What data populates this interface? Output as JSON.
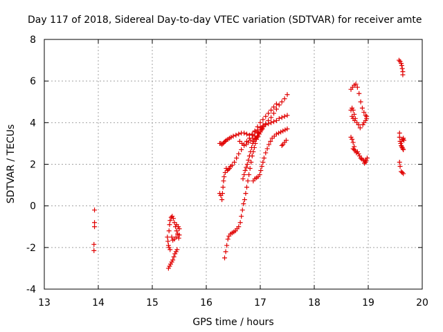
{
  "chart_data": {
    "type": "scatter",
    "title": "Day 117 of 2018, Sidereal Day-to-day VTEC variation (SDTVAR) for receiver amte",
    "xlabel": "GPS time / hours",
    "ylabel": "SDTVAR / TECUs",
    "xlim": [
      13,
      20
    ],
    "ylim": [
      -4,
      8
    ],
    "xticks": [
      "13",
      "14",
      "15",
      "16",
      "17",
      "18",
      "19",
      "20"
    ],
    "yticks": [
      "-4",
      "-2",
      "0",
      "2",
      "4",
      "6",
      "8"
    ],
    "grid": true,
    "marker": "+",
    "series_color": "#e00000",
    "series": [
      {
        "name": "SDTVAR",
        "points": [
          [
            13.93,
            -0.2
          ],
          [
            13.93,
            -0.8
          ],
          [
            13.93,
            -1.0
          ],
          [
            13.92,
            -1.85
          ],
          [
            13.92,
            -2.15
          ],
          [
            15.28,
            -1.5
          ],
          [
            15.29,
            -1.7
          ],
          [
            15.3,
            -1.9
          ],
          [
            15.31,
            -2.0
          ],
          [
            15.33,
            -2.1
          ],
          [
            15.31,
            -1.2
          ],
          [
            15.32,
            -0.9
          ],
          [
            15.33,
            -0.7
          ],
          [
            15.35,
            -0.55
          ],
          [
            15.37,
            -0.5
          ],
          [
            15.39,
            -0.6
          ],
          [
            15.41,
            -0.8
          ],
          [
            15.43,
            -1.0
          ],
          [
            15.45,
            -1.2
          ],
          [
            15.47,
            -1.35
          ],
          [
            15.44,
            -1.5
          ],
          [
            15.41,
            -1.6
          ],
          [
            15.38,
            -1.65
          ],
          [
            15.36,
            -1.5
          ],
          [
            15.45,
            -0.9
          ],
          [
            15.48,
            -1.0
          ],
          [
            15.5,
            -1.1
          ],
          [
            15.5,
            -1.4
          ],
          [
            15.49,
            -1.55
          ],
          [
            15.3,
            -3.0
          ],
          [
            15.32,
            -2.9
          ],
          [
            15.34,
            -2.8
          ],
          [
            15.36,
            -2.7
          ],
          [
            15.38,
            -2.6
          ],
          [
            15.4,
            -2.45
          ],
          [
            15.42,
            -2.3
          ],
          [
            15.44,
            -2.2
          ],
          [
            15.46,
            -2.1
          ],
          [
            16.25,
            3.0
          ],
          [
            16.27,
            3.0
          ],
          [
            16.29,
            2.95
          ],
          [
            16.31,
            3.0
          ],
          [
            16.33,
            3.05
          ],
          [
            16.35,
            3.1
          ],
          [
            16.37,
            3.15
          ],
          [
            16.4,
            3.2
          ],
          [
            16.43,
            3.25
          ],
          [
            16.46,
            3.3
          ],
          [
            16.5,
            3.35
          ],
          [
            16.55,
            3.4
          ],
          [
            16.6,
            3.45
          ],
          [
            16.65,
            3.5
          ],
          [
            16.7,
            3.5
          ],
          [
            16.75,
            3.45
          ],
          [
            16.8,
            3.4
          ],
          [
            16.85,
            3.45
          ],
          [
            16.9,
            3.55
          ],
          [
            16.95,
            3.65
          ],
          [
            17.0,
            3.75
          ],
          [
            17.05,
            3.85
          ],
          [
            17.1,
            3.9
          ],
          [
            17.15,
            3.95
          ],
          [
            17.2,
            4.0
          ],
          [
            17.25,
            4.05
          ],
          [
            17.3,
            4.1
          ],
          [
            17.35,
            4.2
          ],
          [
            17.4,
            4.25
          ],
          [
            17.45,
            4.3
          ],
          [
            17.5,
            4.35
          ],
          [
            16.62,
            3.1
          ],
          [
            16.66,
            3.0
          ],
          [
            16.7,
            2.95
          ],
          [
            16.74,
            2.95
          ],
          [
            16.78,
            3.05
          ],
          [
            16.82,
            3.15
          ],
          [
            16.86,
            3.25
          ],
          [
            16.9,
            3.35
          ],
          [
            16.95,
            3.5
          ],
          [
            17.0,
            3.65
          ],
          [
            17.05,
            3.8
          ],
          [
            17.1,
            3.95
          ],
          [
            17.15,
            4.1
          ],
          [
            17.2,
            4.25
          ],
          [
            17.25,
            4.45
          ],
          [
            17.3,
            4.65
          ],
          [
            17.35,
            4.85
          ],
          [
            17.4,
            5.0
          ],
          [
            17.45,
            5.15
          ],
          [
            17.5,
            5.35
          ],
          [
            16.25,
            0.6
          ],
          [
            16.27,
            0.5
          ],
          [
            16.29,
            0.3
          ],
          [
            16.3,
            0.6
          ],
          [
            16.31,
            0.9
          ],
          [
            16.32,
            1.2
          ],
          [
            16.33,
            1.4
          ],
          [
            16.35,
            1.6
          ],
          [
            16.37,
            1.8
          ],
          [
            16.39,
            1.7
          ],
          [
            16.41,
            1.75
          ],
          [
            16.43,
            1.8
          ],
          [
            16.45,
            1.9
          ],
          [
            16.48,
            1.95
          ],
          [
            16.52,
            2.1
          ],
          [
            16.56,
            2.3
          ],
          [
            16.6,
            2.5
          ],
          [
            16.65,
            2.7
          ],
          [
            16.7,
            2.9
          ],
          [
            16.75,
            3.1
          ],
          [
            16.8,
            3.25
          ],
          [
            16.85,
            3.4
          ],
          [
            16.9,
            3.6
          ],
          [
            16.95,
            3.8
          ],
          [
            17.0,
            4.0
          ],
          [
            17.05,
            4.15
          ],
          [
            17.1,
            4.3
          ],
          [
            17.15,
            4.45
          ],
          [
            17.2,
            4.6
          ],
          [
            17.25,
            4.75
          ],
          [
            17.3,
            4.9
          ],
          [
            16.34,
            -2.5
          ],
          [
            16.36,
            -2.2
          ],
          [
            16.38,
            -1.9
          ],
          [
            16.4,
            -1.6
          ],
          [
            16.42,
            -1.45
          ],
          [
            16.45,
            -1.35
          ],
          [
            16.48,
            -1.3
          ],
          [
            16.51,
            -1.25
          ],
          [
            16.54,
            -1.2
          ],
          [
            16.57,
            -1.1
          ],
          [
            16.6,
            -1.0
          ],
          [
            16.63,
            -0.8
          ],
          [
            16.65,
            -0.5
          ],
          [
            16.67,
            -0.2
          ],
          [
            16.69,
            0.1
          ],
          [
            16.71,
            0.3
          ],
          [
            16.73,
            0.6
          ],
          [
            16.75,
            0.9
          ],
          [
            16.77,
            1.2
          ],
          [
            16.79,
            1.5
          ],
          [
            16.81,
            1.8
          ],
          [
            16.83,
            2.1
          ],
          [
            16.85,
            2.4
          ],
          [
            16.87,
            2.6
          ],
          [
            16.89,
            2.8
          ],
          [
            16.91,
            3.0
          ],
          [
            16.93,
            3.2
          ],
          [
            16.95,
            3.35
          ],
          [
            16.97,
            3.5
          ],
          [
            17.0,
            3.65
          ],
          [
            17.03,
            3.75
          ],
          [
            16.68,
            1.3
          ],
          [
            16.7,
            1.5
          ],
          [
            16.72,
            1.7
          ],
          [
            16.74,
            1.85
          ],
          [
            16.76,
            2.0
          ],
          [
            16.78,
            2.2
          ],
          [
            16.8,
            2.4
          ],
          [
            16.82,
            2.6
          ],
          [
            16.84,
            2.8
          ],
          [
            16.86,
            3.0
          ],
          [
            16.88,
            3.1
          ],
          [
            16.9,
            3.2
          ],
          [
            16.92,
            3.25
          ],
          [
            16.94,
            3.3
          ],
          [
            16.96,
            3.35
          ],
          [
            16.98,
            3.45
          ],
          [
            17.0,
            3.55
          ],
          [
            17.02,
            3.65
          ],
          [
            17.04,
            3.7
          ],
          [
            16.87,
            1.2
          ],
          [
            16.9,
            1.3
          ],
          [
            16.93,
            1.35
          ],
          [
            16.96,
            1.4
          ],
          [
            16.99,
            1.5
          ],
          [
            17.01,
            1.7
          ],
          [
            17.03,
            1.9
          ],
          [
            17.05,
            2.1
          ],
          [
            17.07,
            2.3
          ],
          [
            17.1,
            2.55
          ],
          [
            17.13,
            2.75
          ],
          [
            17.16,
            2.95
          ],
          [
            17.19,
            3.1
          ],
          [
            17.22,
            3.25
          ],
          [
            17.26,
            3.35
          ],
          [
            17.3,
            3.45
          ],
          [
            17.34,
            3.5
          ],
          [
            17.38,
            3.55
          ],
          [
            17.42,
            3.6
          ],
          [
            17.46,
            3.65
          ],
          [
            17.5,
            3.7
          ],
          [
            17.42,
            2.95
          ],
          [
            17.45,
            3.05
          ],
          [
            17.48,
            3.15
          ],
          [
            17.4,
            2.9
          ],
          [
            18.68,
            5.6
          ],
          [
            18.71,
            5.7
          ],
          [
            18.74,
            5.8
          ],
          [
            18.77,
            5.85
          ],
          [
            18.8,
            5.7
          ],
          [
            18.83,
            5.4
          ],
          [
            18.86,
            5.0
          ],
          [
            18.89,
            4.7
          ],
          [
            18.92,
            4.5
          ],
          [
            18.95,
            4.35
          ],
          [
            18.97,
            4.2
          ],
          [
            18.9,
            3.9
          ],
          [
            18.92,
            4.0
          ],
          [
            18.95,
            4.1
          ],
          [
            18.97,
            4.3
          ],
          [
            18.68,
            4.6
          ],
          [
            18.7,
            4.7
          ],
          [
            18.72,
            4.6
          ],
          [
            18.74,
            4.4
          ],
          [
            18.76,
            4.2
          ],
          [
            18.79,
            4.0
          ],
          [
            18.82,
            3.9
          ],
          [
            18.85,
            3.75
          ],
          [
            18.7,
            4.3
          ],
          [
            18.72,
            4.2
          ],
          [
            18.75,
            4.1
          ],
          [
            18.68,
            3.3
          ],
          [
            18.7,
            3.2
          ],
          [
            18.72,
            3.05
          ],
          [
            18.74,
            2.85
          ],
          [
            18.76,
            2.65
          ],
          [
            18.78,
            2.55
          ],
          [
            18.8,
            2.6
          ],
          [
            18.82,
            2.5
          ],
          [
            18.84,
            2.4
          ],
          [
            18.86,
            2.3
          ],
          [
            18.88,
            2.25
          ],
          [
            18.91,
            2.2
          ],
          [
            18.94,
            2.15
          ],
          [
            18.96,
            2.2
          ],
          [
            18.98,
            2.3
          ],
          [
            18.72,
            2.75
          ],
          [
            18.74,
            2.7
          ],
          [
            18.93,
            2.05
          ],
          [
            18.95,
            2.1
          ],
          [
            19.57,
            7.0
          ],
          [
            19.59,
            6.95
          ],
          [
            19.61,
            6.85
          ],
          [
            19.62,
            6.75
          ],
          [
            19.63,
            6.6
          ],
          [
            19.64,
            6.45
          ],
          [
            19.64,
            6.3
          ],
          [
            19.58,
            3.5
          ],
          [
            19.58,
            3.3
          ],
          [
            19.59,
            3.1
          ],
          [
            19.6,
            3.0
          ],
          [
            19.61,
            2.9
          ],
          [
            19.62,
            2.85
          ],
          [
            19.63,
            2.8
          ],
          [
            19.64,
            2.75
          ],
          [
            19.65,
            2.7
          ],
          [
            19.62,
            3.1
          ],
          [
            19.64,
            3.2
          ],
          [
            19.65,
            3.25
          ],
          [
            19.66,
            3.15
          ],
          [
            19.58,
            2.1
          ],
          [
            19.59,
            1.9
          ],
          [
            19.61,
            1.65
          ],
          [
            19.63,
            1.6
          ],
          [
            19.65,
            1.55
          ]
        ]
      }
    ]
  }
}
